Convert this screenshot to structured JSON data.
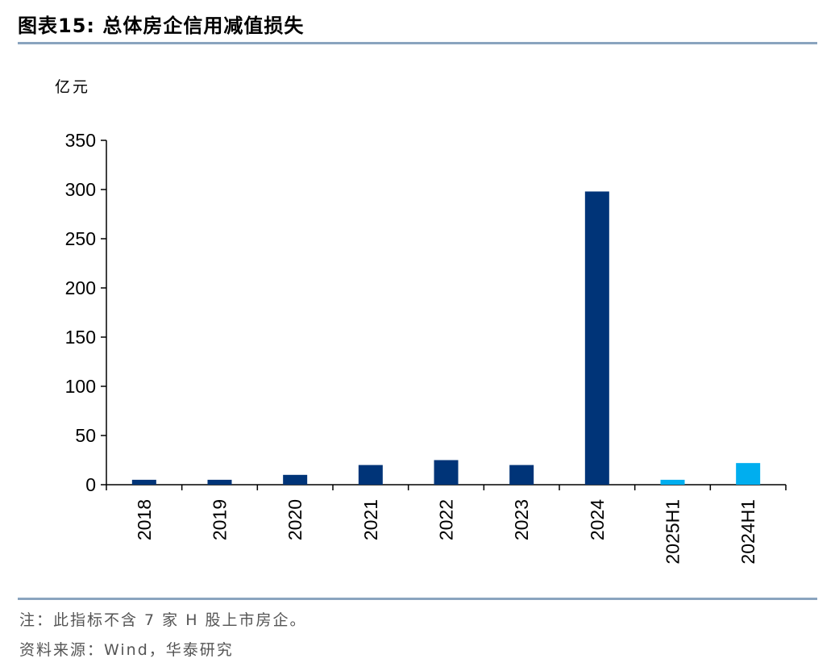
{
  "header": {
    "title": "图表15:  总体房企信用减值损失"
  },
  "chart_data": {
    "type": "bar",
    "unit_label": "亿元",
    "categories": [
      "2018",
      "2019",
      "2020",
      "2021",
      "2022",
      "2023",
      "2024",
      "2025H1",
      "2024H1"
    ],
    "values": [
      5,
      5,
      10,
      20,
      25,
      20,
      298,
      5,
      22
    ],
    "bar_colors": [
      "#003478",
      "#003478",
      "#003478",
      "#003478",
      "#003478",
      "#003478",
      "#003478",
      "#00aeef",
      "#00aeef"
    ],
    "ylim": [
      0,
      350
    ],
    "yticks": [
      0,
      50,
      100,
      150,
      200,
      250,
      300,
      350
    ],
    "xlabel": "",
    "ylabel": "",
    "grid": false
  },
  "footer": {
    "note": "注：此指标不含 7 家 H 股上市房企。",
    "source": "资料来源：Wind，华泰研究"
  }
}
